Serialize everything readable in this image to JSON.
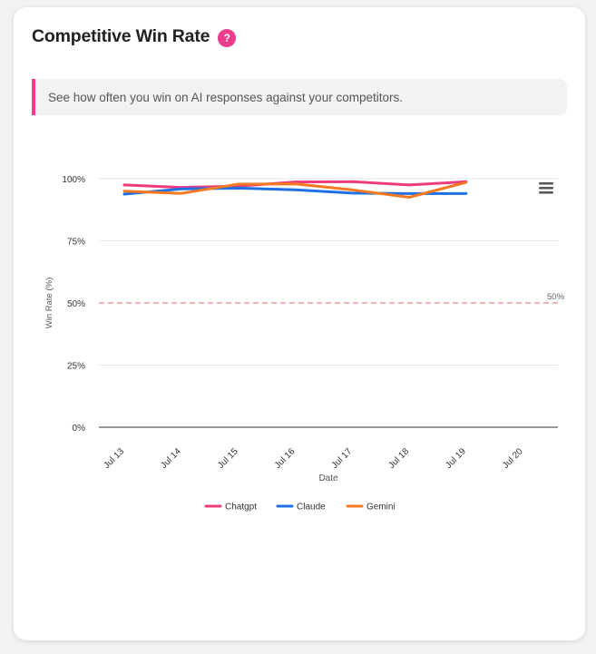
{
  "header": {
    "title": "Competitive Win Rate",
    "help_icon": "?"
  },
  "info": {
    "text": "See how often you win on AI responses against your competitors."
  },
  "menu_icon": "hamburger-menu-icon",
  "chart_data": {
    "type": "line",
    "categories": [
      "Jul 13",
      "Jul 14",
      "Jul 15",
      "Jul 16",
      "Jul 17",
      "Jul 18",
      "Jul 19",
      "Jul 20"
    ],
    "series": [
      {
        "name": "Chatgpt",
        "color": "#ec3c7e",
        "values": [
          97.5,
          96.5,
          97,
          98.7,
          98.8,
          97.5,
          98.8,
          null
        ]
      },
      {
        "name": "Claude",
        "color": "#1f6fe5",
        "values": [
          93.8,
          95.9,
          96.2,
          95.5,
          94.2,
          94.0,
          94.0,
          null
        ]
      },
      {
        "name": "Gemini",
        "color": "#f37a22",
        "values": [
          95.0,
          94.1,
          97.8,
          97.9,
          95.5,
          92.5,
          98.5,
          null
        ]
      }
    ],
    "xlabel": "Date",
    "ylabel": "Win Rate (%)",
    "ylim": [
      0,
      100
    ],
    "yticks": [
      "0%",
      "25%",
      "50%",
      "75%",
      "100%"
    ],
    "reference_line": {
      "value": 50,
      "label": "50%",
      "color": "#e06666"
    },
    "grid": true,
    "legend_position": "bottom"
  }
}
